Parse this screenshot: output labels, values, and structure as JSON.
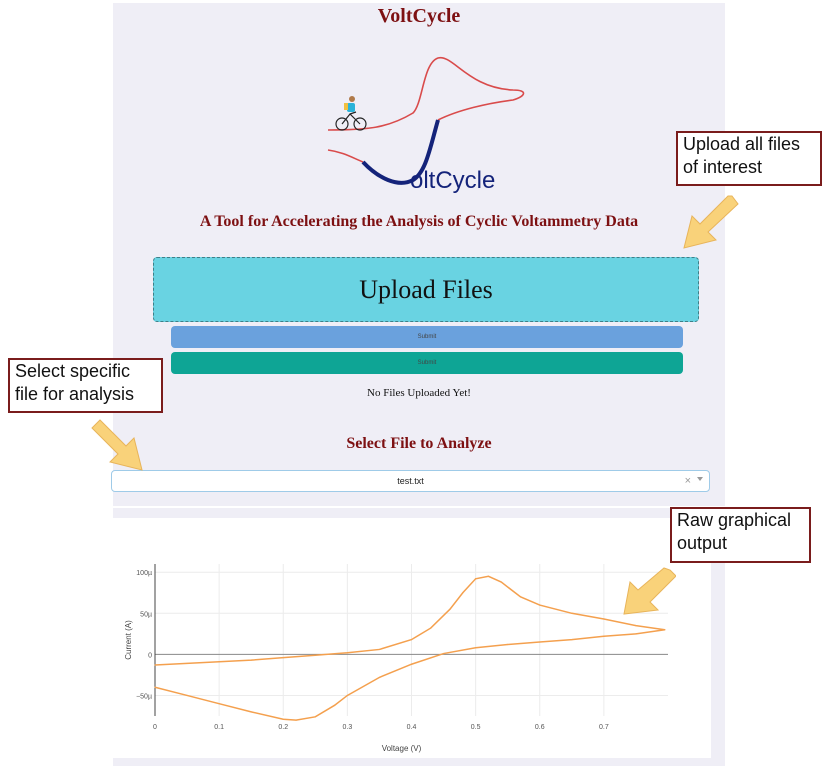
{
  "app": {
    "title": "VoltCycle",
    "logo_text": "oltCycle",
    "tagline": "A Tool for Accelerating the Analysis of Cyclic Voltammetry Data"
  },
  "upload": {
    "label": "Upload Files",
    "button1_label": "Submit",
    "button2_label": "Submit",
    "status_text": "No Files Uploaded Yet!"
  },
  "select": {
    "title": "Select File to Analyze",
    "value": "test.txt",
    "clear_icon": "×"
  },
  "callouts": {
    "upload_line1": "Upload all files",
    "upload_line2": "of interest",
    "select_line1": "Select specific",
    "select_line2": "file for analysis",
    "output_line1": "Raw graphical",
    "output_line2": "output"
  },
  "colors": {
    "brand": "#7d1012",
    "upload_bg": "#69d3e2",
    "button_blue": "#6aa1dd",
    "button_teal": "#0ea595",
    "trace": "#f4a04e",
    "arrow": "#f9d27a"
  },
  "chart_data": {
    "type": "line",
    "xlabel": "Voltage (V)",
    "ylabel": "Current (A)",
    "xlim": [
      0,
      0.8
    ],
    "ylim": [
      -75,
      110
    ],
    "x_ticks": [
      "0",
      "0.1",
      "0.2",
      "0.3",
      "0.4",
      "0.5",
      "0.6",
      "0.7"
    ],
    "y_ticks": [
      "100µ",
      "50µ",
      "0",
      "−50µ"
    ],
    "grid": true,
    "series": [
      {
        "x": [
          0,
          0.05,
          0.1,
          0.15,
          0.2,
          0.25,
          0.3,
          0.35,
          0.4,
          0.43,
          0.46,
          0.48,
          0.5,
          0.52,
          0.54,
          0.57,
          0.6,
          0.65,
          0.7,
          0.75,
          0.795
        ],
        "y": [
          -13,
          -11,
          -9,
          -7,
          -4,
          -1,
          2,
          6,
          18,
          32,
          55,
          75,
          92,
          95,
          88,
          70,
          60,
          50,
          43,
          35,
          30
        ]
      },
      {
        "x": [
          0.795,
          0.75,
          0.7,
          0.65,
          0.6,
          0.55,
          0.5,
          0.45,
          0.4,
          0.35,
          0.3,
          0.28,
          0.25,
          0.22,
          0.2,
          0.15,
          0.1,
          0.05,
          0
        ],
        "y": [
          30,
          25,
          22,
          18,
          15,
          12,
          8,
          1,
          -12,
          -28,
          -50,
          -62,
          -76,
          -80,
          -79,
          -70,
          -60,
          -50,
          -40
        ]
      }
    ]
  }
}
